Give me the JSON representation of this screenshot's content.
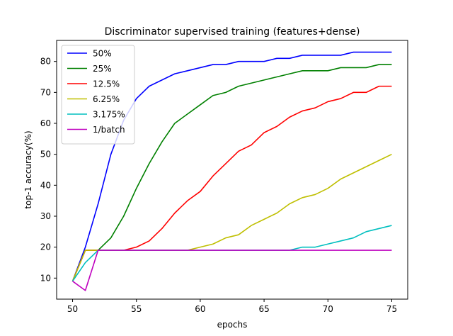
{
  "chart_data": {
    "type": "line",
    "title": "Discriminator supervised training (features+dense)",
    "xlabel": "epochs",
    "ylabel": "top-1 accuracy(%)",
    "xlim": [
      48.75,
      76.25
    ],
    "ylim": [
      3.2,
      86.8
    ],
    "xticks": [
      50,
      55,
      60,
      65,
      70,
      75
    ],
    "yticks": [
      10,
      20,
      30,
      40,
      50,
      60,
      70,
      80
    ],
    "grid": false,
    "legend_position": "upper-left",
    "x": [
      50,
      51,
      52,
      53,
      54,
      55,
      56,
      57,
      58,
      59,
      60,
      61,
      62,
      63,
      64,
      65,
      66,
      67,
      68,
      69,
      70,
      71,
      72,
      73,
      74,
      75
    ],
    "series": [
      {
        "name": "50%",
        "color": "#0000ff",
        "values": [
          9,
          20,
          34,
          50,
          61,
          68,
          72,
          74,
          76,
          77,
          78,
          79,
          79,
          80,
          80,
          80,
          81,
          81,
          82,
          82,
          82,
          82,
          83,
          83,
          83,
          83
        ]
      },
      {
        "name": "25%",
        "color": "#008000",
        "values": [
          9,
          19,
          19,
          23,
          30,
          39,
          47,
          54,
          60,
          63,
          66,
          69,
          70,
          72,
          73,
          74,
          75,
          76,
          77,
          77,
          77,
          78,
          78,
          78,
          79,
          79
        ]
      },
      {
        "name": "12.5%",
        "color": "#ff0000",
        "values": [
          9,
          19,
          19,
          19,
          19,
          20,
          22,
          26,
          31,
          35,
          38,
          43,
          47,
          51,
          53,
          57,
          59,
          62,
          64,
          65,
          67,
          68,
          70,
          70,
          72,
          72
        ]
      },
      {
        "name": "6.25%",
        "color": "#bfbf00",
        "values": [
          9,
          19,
          19,
          19,
          19,
          19,
          19,
          19,
          19,
          19,
          20,
          21,
          23,
          24,
          27,
          29,
          31,
          34,
          36,
          37,
          39,
          42,
          44,
          46,
          48,
          50
        ]
      },
      {
        "name": "3.175%",
        "color": "#00bfbf",
        "values": [
          9,
          15,
          19,
          19,
          19,
          19,
          19,
          19,
          19,
          19,
          19,
          19,
          19,
          19,
          19,
          19,
          19,
          19,
          20,
          20,
          21,
          22,
          23,
          25,
          26,
          27
        ]
      },
      {
        "name": "1/batch",
        "color": "#bf00bf",
        "values": [
          9,
          6,
          19,
          19,
          19,
          19,
          19,
          19,
          19,
          19,
          19,
          19,
          19,
          19,
          19,
          19,
          19,
          19,
          19,
          19,
          19,
          19,
          19,
          19,
          19,
          19
        ]
      }
    ]
  }
}
